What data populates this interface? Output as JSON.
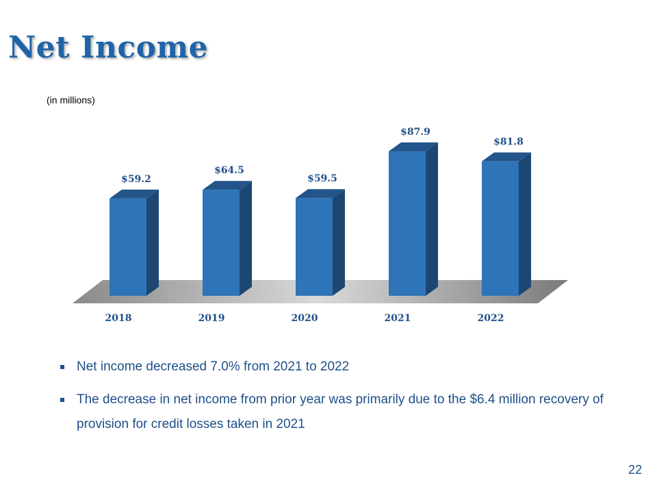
{
  "slide": {
    "title": "Net Income",
    "units": "(in millions)",
    "page_number": "22",
    "bullets": [
      "Net income decreased 7.0% from 2021 to 2022",
      "The decrease in net income from prior year was primarily due to the $6.4 million recovery of provision for credit losses taken in 2021"
    ]
  },
  "colors": {
    "title": "#1f64a8",
    "bar_front": "#2e74b8",
    "bar_side": "#1d4773",
    "bar_top": "#23558a",
    "label": "#1f4f8a"
  },
  "chart_data": {
    "type": "bar",
    "categories": [
      "2018",
      "2019",
      "2020",
      "2021",
      "2022"
    ],
    "values": [
      59.2,
      64.5,
      59.5,
      87.9,
      81.8
    ],
    "value_labels": [
      "$59.2",
      "$64.5",
      "$59.5",
      "$87.9",
      "$81.8"
    ],
    "title": "",
    "xlabel": "",
    "ylabel": "",
    "ylim": [
      0,
      100
    ],
    "grid": false,
    "legend": "none"
  }
}
